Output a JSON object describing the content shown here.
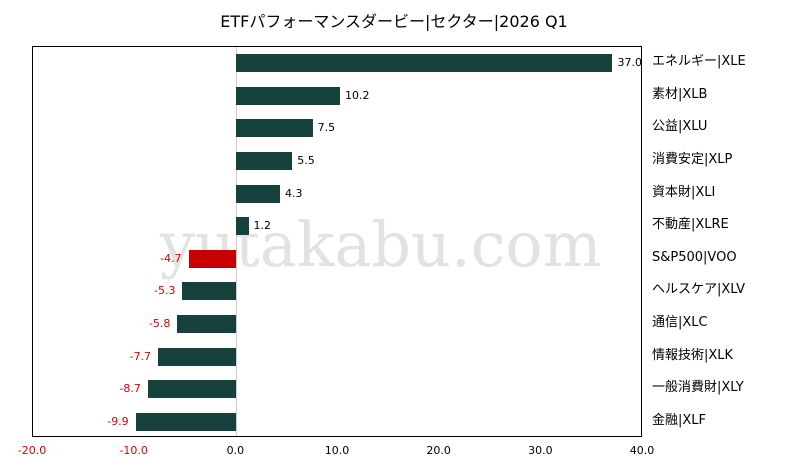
{
  "title": "ETFパフォーマンスダービー|セクター|2026 Q1",
  "watermark": "yutakabu.com",
  "colors": {
    "background": "#FFFFFF",
    "bar_default": "#17413C",
    "bar_highlight": "#C80000",
    "negative_text": "#E00000",
    "positive_text": "#000000",
    "watermark": "#E2E2E2",
    "zero_line": "#CCCCCC",
    "plot_border": "#000000"
  },
  "chart_data": {
    "type": "bar",
    "orientation": "horizontal",
    "title": "ETFパフォーマンスダービー|セクター|2026 Q1",
    "categories": [
      "エネルギー|XLE",
      "素材|XLB",
      "公益|XLU",
      "消費安定|XLP",
      "資本財|XLI",
      "不動産|XLRE",
      "S&P500|VOO",
      "ヘルスケア|XLV",
      "通信|XLC",
      "情報技術|XLK",
      "一般消費財|XLY",
      "金融|XLF"
    ],
    "values": [
      37.0,
      10.2,
      7.5,
      5.5,
      4.3,
      1.2,
      -4.7,
      -5.3,
      -5.8,
      -7.7,
      -8.7,
      -9.9
    ],
    "value_labels": [
      "37.0",
      "10.2",
      "7.5",
      "5.5",
      "4.3",
      "1.2",
      "-4.7",
      "-5.3",
      "-5.8",
      "-7.7",
      "-8.7",
      "-9.9"
    ],
    "highlight_category": "S&P500|VOO",
    "xlim": [
      -20,
      40
    ],
    "xticks": [
      -20.0,
      -10.0,
      0.0,
      10.0,
      20.0,
      30.0,
      40.0
    ],
    "xtick_labels": [
      "-20.0",
      "-10.0",
      "0.0",
      "10.0",
      "20.0",
      "30.0",
      "40.0"
    ],
    "grid": false,
    "legend": false,
    "category_labels_position": "right",
    "negative_labels_colored_red": true
  }
}
